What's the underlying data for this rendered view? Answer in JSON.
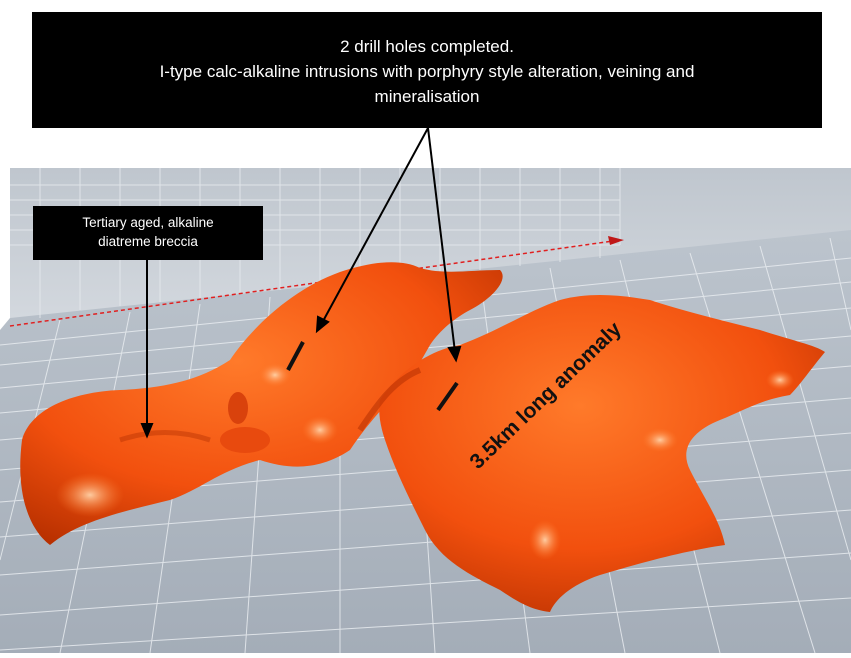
{
  "callout_top": {
    "line1": "2 drill holes completed.",
    "line2": "I-type calc-alkaline intrusions with porphyry style alteration, veining and",
    "line3": "mineralisation"
  },
  "callout_left": {
    "line1": "Tertiary aged, alkaline",
    "line2": "diatreme breccia"
  },
  "anomaly_label": "3.5km long anomaly",
  "colors": {
    "anomaly_body": "#ff5a14",
    "anomaly_shadow": "#c23200",
    "anomaly_highlight": "#ffb27a",
    "floor": "#aeb7c1",
    "back_wall": "#c9cfd6",
    "grid_line": "#e6eaee",
    "callout_bg": "#000000",
    "callout_text": "#ffffff",
    "axis_line": "#e02020"
  }
}
